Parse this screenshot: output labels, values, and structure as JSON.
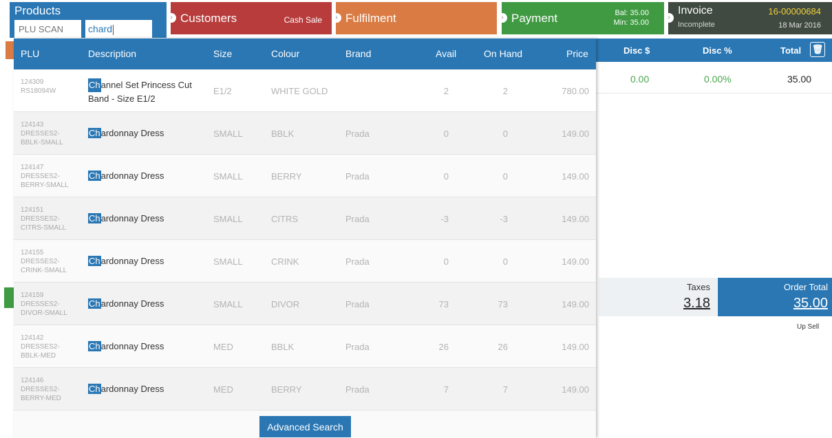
{
  "steps": {
    "products": {
      "title": "Products",
      "plu_placeholder": "PLU SCAN",
      "search_value": "chard"
    },
    "customers": {
      "label": "Customers",
      "sub": "Cash Sale"
    },
    "fulfilment": {
      "label": "Fulfilment"
    },
    "payment": {
      "label": "Payment",
      "bal": "Bal: 35.00",
      "min": "Min: 35.00"
    },
    "invoice": {
      "title": "Invoice",
      "status": "Incomplete",
      "number": "16-00000684",
      "date": "18 Mar 2016"
    }
  },
  "dropdown": {
    "headers": {
      "plu": "PLU",
      "description": "Description",
      "size": "Size",
      "colour": "Colour",
      "brand": "Brand",
      "avail": "Avail",
      "on_hand": "On Hand",
      "price": "Price"
    },
    "highlight": "Ch",
    "rows": [
      {
        "plu1": "124309",
        "plu2": "RS18094W",
        "plu3": "",
        "desc_rest": "annel Set Princess Cut",
        "desc_line2": "Band - Size E1/2",
        "size": "E1/2",
        "colour": "WHITE GOLD",
        "brand": "",
        "avail": "2",
        "on_hand": "2",
        "price": "780.00"
      },
      {
        "plu1": "124143",
        "plu2": "DRESSES2-",
        "plu3": "BBLK-SMALL",
        "desc_rest": "ardonnay Dress",
        "desc_line2": "",
        "size": "SMALL",
        "colour": "BBLK",
        "brand": "Prada",
        "avail": "0",
        "on_hand": "0",
        "price": "149.00"
      },
      {
        "plu1": "124147",
        "plu2": "DRESSES2-",
        "plu3": "BERRY-SMALL",
        "desc_rest": "ardonnay Dress",
        "desc_line2": "",
        "size": "SMALL",
        "colour": "BERRY",
        "brand": "Prada",
        "avail": "0",
        "on_hand": "0",
        "price": "149.00"
      },
      {
        "plu1": "124151",
        "plu2": "DRESSES2-",
        "plu3": "CITRS-SMALL",
        "desc_rest": "ardonnay Dress",
        "desc_line2": "",
        "size": "SMALL",
        "colour": "CITRS",
        "brand": "Prada",
        "avail": "-3",
        "on_hand": "-3",
        "price": "149.00"
      },
      {
        "plu1": "124155",
        "plu2": "DRESSES2-",
        "plu3": "CRINK-SMALL",
        "desc_rest": "ardonnay Dress",
        "desc_line2": "",
        "size": "SMALL",
        "colour": "CRINK",
        "brand": "Prada",
        "avail": "0",
        "on_hand": "0",
        "price": "149.00"
      },
      {
        "plu1": "124159",
        "plu2": "DRESSES2-",
        "plu3": "DIVOR-SMALL",
        "desc_rest": "ardonnay Dress",
        "desc_line2": "",
        "size": "SMALL",
        "colour": "DIVOR",
        "brand": "Prada",
        "avail": "73",
        "on_hand": "73",
        "price": "149.00"
      },
      {
        "plu1": "124142",
        "plu2": "DRESSES2-",
        "plu3": "BBLK-MED",
        "desc_rest": "ardonnay Dress",
        "desc_line2": "",
        "size": "MED",
        "colour": "BBLK",
        "brand": "Prada",
        "avail": "26",
        "on_hand": "26",
        "price": "149.00"
      },
      {
        "plu1": "124146",
        "plu2": "DRESSES2-",
        "plu3": "BERRY-MED",
        "desc_rest": "ardonnay Dress",
        "desc_line2": "",
        "size": "MED",
        "colour": "BERRY",
        "brand": "Prada",
        "avail": "7",
        "on_hand": "7",
        "price": "149.00"
      }
    ],
    "advanced_search": "Advanced Search"
  },
  "order": {
    "headers": {
      "disc_amt": "Disc $",
      "disc_pct": "Disc %",
      "total": "Total"
    },
    "row": {
      "disc_amt": "0.00",
      "disc_pct": "0.00%",
      "total": "35.00"
    },
    "taxes_label": "Taxes",
    "taxes_value": "3.18",
    "order_total_label": "Order Total",
    "order_total_value": "35.00",
    "upsell": "Up Sell"
  },
  "colors": {
    "blue": "#2a77b4",
    "red": "#b83c3c",
    "orange": "#d97b43",
    "green": "#3f9a42",
    "dark": "#414a41",
    "yellow": "#f0d23c"
  },
  "icons": {
    "trash": "trash-icon",
    "chevron": "chevron-right-icon"
  }
}
